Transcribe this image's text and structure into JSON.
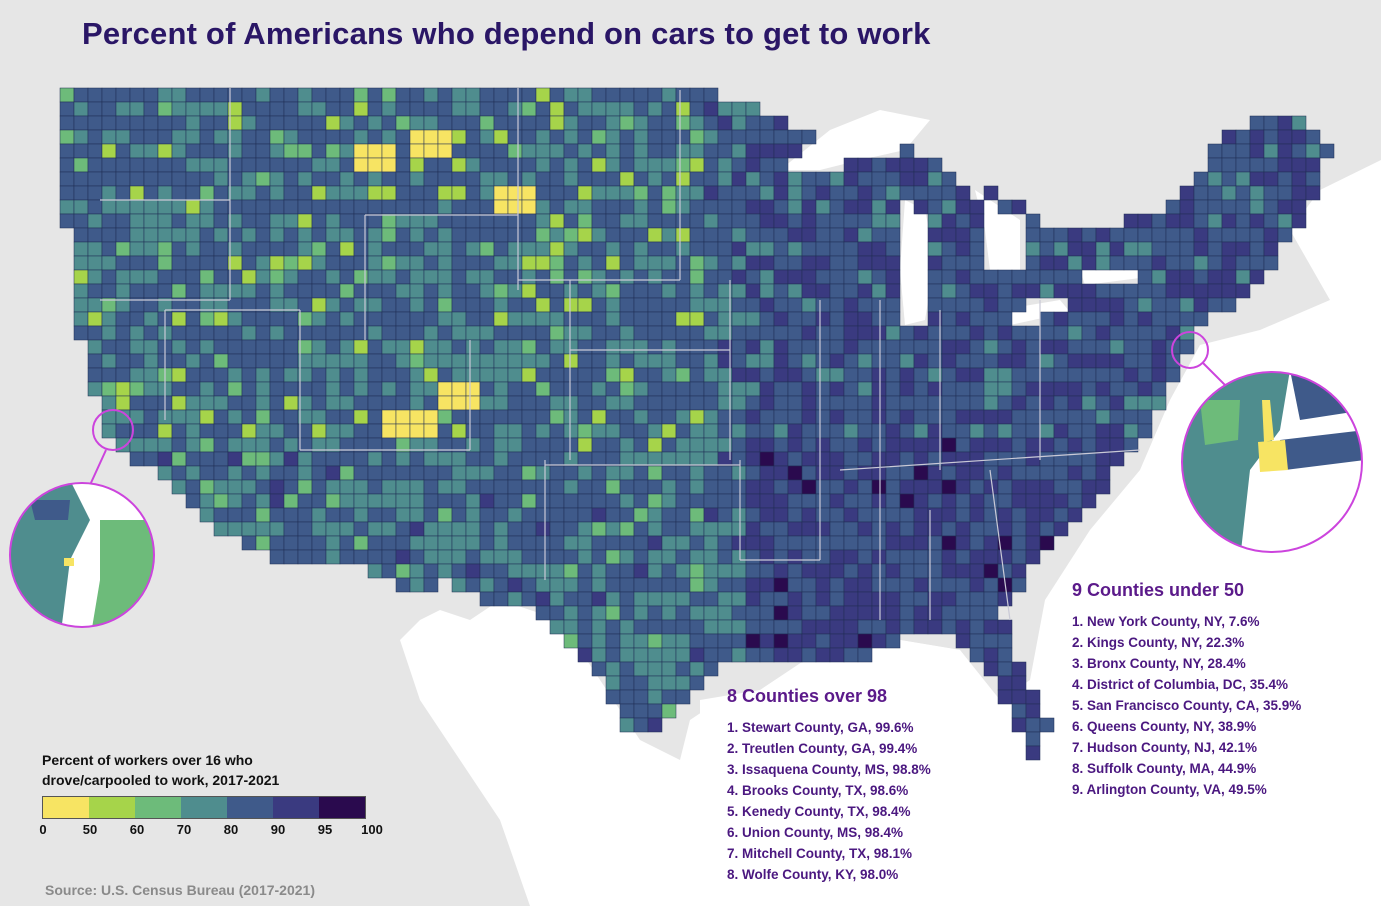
{
  "title": "Percent of Americans who depend on cars to get to work",
  "colors": {
    "ocean": "#ffffff",
    "land": "#e6e6e6",
    "county_border": "#1f2d52",
    "state_border": "#c9c9d6",
    "callout_ring": "#cc44dd"
  },
  "legend": {
    "title": "Percent of workers over 16 who drove/carpooled to work,  2017-2021",
    "bins": [
      {
        "color": "#f7e463"
      },
      {
        "color": "#a6d44a"
      },
      {
        "color": "#6dbb7a"
      },
      {
        "color": "#4f8d8e"
      },
      {
        "color": "#3f5a8a"
      },
      {
        "color": "#3a3a80"
      },
      {
        "color": "#2a0a4e"
      }
    ],
    "ticks": [
      "0",
      "50",
      "60",
      "70",
      "80",
      "90",
      "95",
      "100"
    ]
  },
  "source": "Source: U.S. Census Bureau (2017-2021)",
  "under_50": {
    "heading": "9 Counties under 50",
    "items": [
      "1. New York County, NY, 7.6%",
      "2. Kings County, NY, 22.3%",
      "3. Bronx County, NY, 28.4%",
      "4. District of Columbia, DC, 35.4%",
      "5. San Francisco County, CA, 35.9%",
      "6. Queens County, NY, 38.9%",
      "7. Hudson County, NJ, 42.1%",
      "8. Suffolk County, MA, 44.9%",
      "9. Arlington County, VA, 49.5%"
    ]
  },
  "over_98": {
    "heading": "8 Counties over 98",
    "items": [
      "1. Stewart County, GA, 99.6%",
      "2. Treutlen County, GA, 99.4%",
      "3. Issaquena County, MS, 98.8%",
      "4. Brooks County, TX, 98.6%",
      "5. Kenedy County, TX, 98.4%",
      "6. Union County, MS, 98.4%",
      "7. Mitchell County, TX, 98.1%",
      "8. Wolfe County, KY, 98.0%"
    ]
  }
}
